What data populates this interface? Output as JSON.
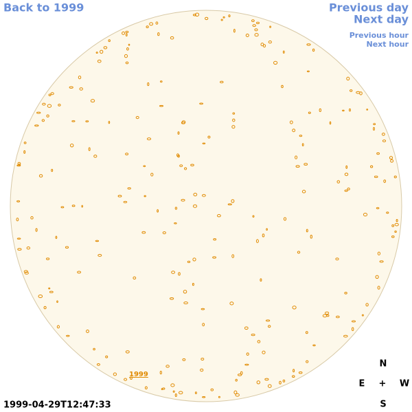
{
  "nav": {
    "back": "Back to 1999",
    "previous_day": "Previous day",
    "next_day": "Next day",
    "previous_hour": "Previous hour",
    "next_hour": "Next hour"
  },
  "disk_label": "1999",
  "timestamp": "1999-04-29T12:47:33",
  "compass": {
    "north": "N",
    "east": "E",
    "center": "+",
    "west": "W",
    "south": "S"
  }
}
